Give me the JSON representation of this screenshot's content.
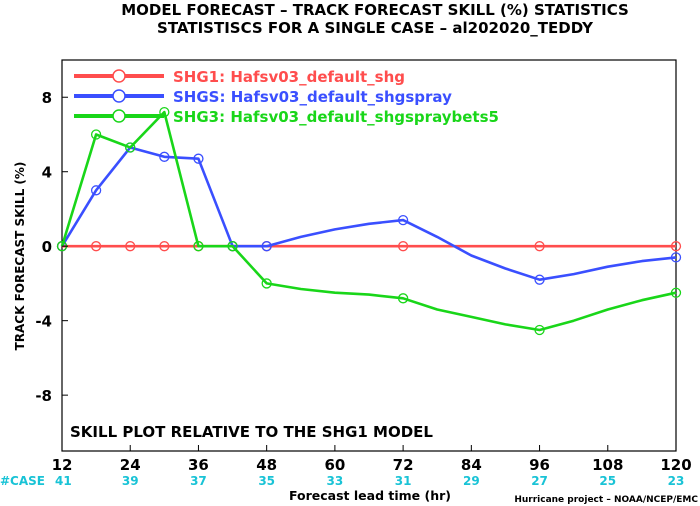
{
  "title_line1": "MODEL FORECAST – TRACK FORECAST SKILL (%) STATISTICS",
  "title_line2": "STATISTISCS FOR A SINGLE CASE – al202020_TEDDY",
  "annotation": "SKILL PLOT RELATIVE TO THE SHG1 MODEL",
  "case_label": "#CASE",
  "credit": "Hurricane project – NOAA/NCEP/EMC",
  "chart_data": {
    "type": "line",
    "xlabel": "Forecast lead time (hr)",
    "ylabel": "TRACK FORECAST SKILL (%)",
    "xlim": [
      12,
      120
    ],
    "ylim": [
      -11,
      10
    ],
    "xticks": [
      12,
      24,
      36,
      48,
      60,
      72,
      84,
      96,
      108,
      120
    ],
    "yticks": [
      -8,
      -4,
      0,
      4,
      8
    ],
    "case_counts": [
      {
        "x": 12,
        "n": 41
      },
      {
        "x": 24,
        "n": 39
      },
      {
        "x": 36,
        "n": 37
      },
      {
        "x": 48,
        "n": 35
      },
      {
        "x": 60,
        "n": 33
      },
      {
        "x": 72,
        "n": 31
      },
      {
        "x": 84,
        "n": 29
      },
      {
        "x": 96,
        "n": 27
      },
      {
        "x": 108,
        "n": 25
      },
      {
        "x": 120,
        "n": 23
      }
    ],
    "legend_position": "top-left",
    "series": [
      {
        "name": "SHG1: Hafsv03_default_shg",
        "color": "#ff4d4d",
        "x": [
          12,
          18,
          24,
          30,
          36,
          42,
          48,
          72,
          96,
          120
        ],
        "y": [
          0,
          0,
          0,
          0,
          0,
          0,
          0,
          0,
          0,
          0
        ],
        "markers": [
          12,
          18,
          24,
          30,
          36,
          42,
          48,
          72,
          96,
          120
        ]
      },
      {
        "name": "SHGS: Hafsv03_default_shgspray",
        "color": "#3a4fff",
        "x": [
          12,
          18,
          24,
          30,
          36,
          42,
          48,
          54,
          60,
          66,
          72,
          78,
          84,
          90,
          96,
          102,
          108,
          114,
          120
        ],
        "y": [
          0,
          3.0,
          5.3,
          4.8,
          4.7,
          0,
          0,
          0.5,
          0.9,
          1.2,
          1.4,
          0.5,
          -0.5,
          -1.2,
          -1.8,
          -1.5,
          -1.1,
          -0.8,
          -0.6
        ],
        "markers": [
          12,
          18,
          24,
          30,
          36,
          42,
          48,
          72,
          96,
          120
        ]
      },
      {
        "name": "SHG3: Hafsv03_default_shgspraybets5",
        "color": "#19d619",
        "x": [
          12,
          18,
          24,
          30,
          36,
          42,
          48,
          54,
          60,
          66,
          72,
          78,
          84,
          90,
          96,
          102,
          108,
          114,
          120
        ],
        "y": [
          0,
          6.0,
          5.3,
          7.2,
          0,
          0,
          -2.0,
          -2.3,
          -2.5,
          -2.6,
          -2.8,
          -3.4,
          -3.8,
          -4.2,
          -4.5,
          -4.0,
          -3.4,
          -2.9,
          -2.5
        ],
        "markers": [
          12,
          18,
          24,
          30,
          36,
          42,
          48,
          72,
          96,
          120
        ]
      }
    ]
  }
}
